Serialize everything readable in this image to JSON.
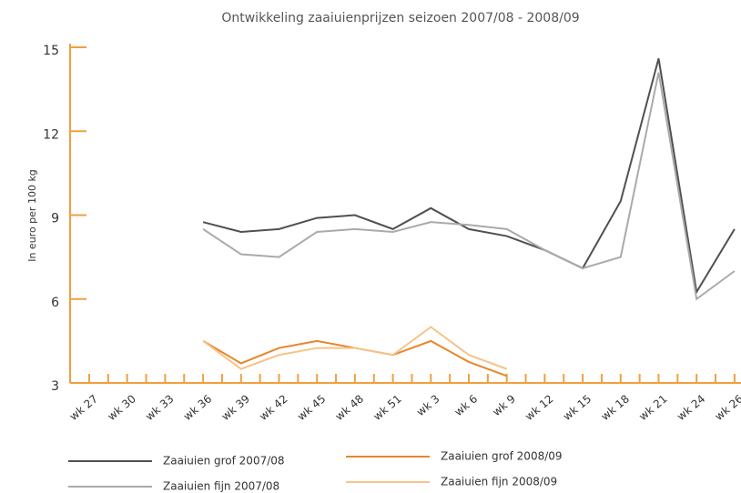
{
  "chart_data": {
    "type": "line",
    "title": "Ontwikkeling zaaiuienprijzen seizoen 2007/08 - 2008/09",
    "y_label": "In euro per 100 kg",
    "categories": [
      "wk 27",
      "wk 30",
      "wk 33",
      "wk 36",
      "wk 39",
      "wk 42",
      "wk 45",
      "wk 48",
      "wk 51",
      "wk 3",
      "wk 6",
      "wk 9",
      "wk 12",
      "wk 15",
      "wk 18",
      "wk 21",
      "wk 24",
      "wk 26"
    ],
    "series": [
      {
        "name": "Zaaiuien grof 2007/08",
        "color": "#505050",
        "values": [
          null,
          null,
          null,
          8.75,
          8.4,
          8.5,
          8.9,
          9.0,
          8.5,
          9.25,
          8.5,
          8.25,
          7.75,
          7.1,
          9.5,
          14.6,
          6.25,
          8.5
        ]
      },
      {
        "name": "Zaaiuien grof 2008/09",
        "color": "#e8862a",
        "values": [
          null,
          null,
          null,
          4.5,
          3.7,
          4.25,
          4.5,
          4.25,
          4.0,
          4.5,
          3.75,
          3.25,
          null,
          null,
          null,
          null,
          null,
          null
        ]
      },
      {
        "name": "Zaaiuien fijn 2007/08",
        "color": "#aaaaaa",
        "values": [
          null,
          null,
          null,
          8.5,
          7.6,
          7.5,
          8.4,
          8.5,
          8.4,
          8.75,
          8.65,
          8.5,
          7.75,
          7.1,
          7.5,
          14.1,
          6.0,
          7.0
        ]
      },
      {
        "name": "Zaaiuien fijn 2008/09",
        "color": "#f6c38a",
        "values": [
          null,
          null,
          null,
          4.5,
          3.5,
          4.0,
          4.25,
          4.25,
          4.0,
          5.0,
          4.0,
          3.5,
          null,
          null,
          null,
          null,
          null,
          null
        ]
      }
    ],
    "ylim": [
      3,
      15
    ],
    "yticks": [
      3,
      6,
      9,
      12,
      15
    ],
    "axis_color": "#f0a040"
  }
}
